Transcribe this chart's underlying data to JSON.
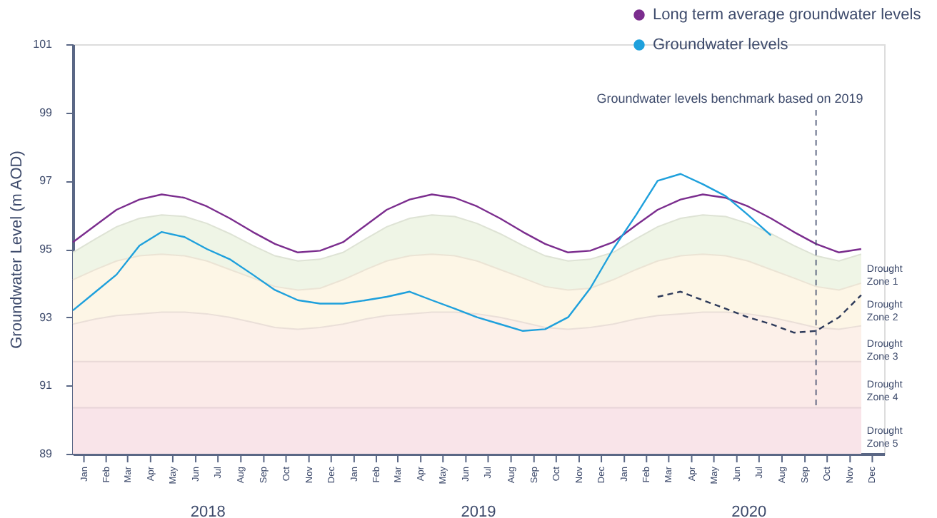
{
  "chart_data": {
    "type": "line",
    "ylabel": "Groundwater Level (m AOD)",
    "x": [
      "2018-01",
      "2018-02",
      "2018-03",
      "2018-04",
      "2018-05",
      "2018-06",
      "2018-07",
      "2018-08",
      "2018-09",
      "2018-10",
      "2018-11",
      "2018-12",
      "2019-01",
      "2019-02",
      "2019-03",
      "2019-04",
      "2019-05",
      "2019-06",
      "2019-07",
      "2019-08",
      "2019-09",
      "2019-10",
      "2019-11",
      "2019-12",
      "2020-01",
      "2020-02",
      "2020-03",
      "2020-04",
      "2020-05",
      "2020-06",
      "2020-07",
      "2020-08",
      "2020-09",
      "2020-10",
      "2020-11",
      "2020-12"
    ],
    "xlim": [
      "2018-01-01",
      "2021-01-01"
    ],
    "xticks": [
      {
        "value": "2018-01-16",
        "label": "Jan"
      },
      {
        "value": "2018-02-15",
        "label": "Feb"
      },
      {
        "value": "2018-03-16",
        "label": "Mar"
      },
      {
        "value": "2018-04-16",
        "label": "Apr"
      },
      {
        "value": "2018-05-16",
        "label": "May"
      },
      {
        "value": "2018-06-16",
        "label": "Jun"
      },
      {
        "value": "2018-07-16",
        "label": "Jul"
      },
      {
        "value": "2018-08-16",
        "label": "Aug"
      },
      {
        "value": "2018-09-16",
        "label": "Sep"
      },
      {
        "value": "2018-10-16",
        "label": "Oct"
      },
      {
        "value": "2018-11-16",
        "label": "Nov"
      },
      {
        "value": "2018-12-16",
        "label": "Dec"
      },
      {
        "value": "2019-01-16",
        "label": "Jan"
      },
      {
        "value": "2019-02-15",
        "label": "Feb"
      },
      {
        "value": "2019-03-16",
        "label": "Mar"
      },
      {
        "value": "2019-04-16",
        "label": "Apr"
      },
      {
        "value": "2019-05-16",
        "label": "May"
      },
      {
        "value": "2019-06-16",
        "label": "Jun"
      },
      {
        "value": "2019-07-16",
        "label": "Jul"
      },
      {
        "value": "2019-08-16",
        "label": "Aug"
      },
      {
        "value": "2019-09-16",
        "label": "Sep"
      },
      {
        "value": "2019-10-16",
        "label": "Oct"
      },
      {
        "value": "2019-11-16",
        "label": "Nov"
      },
      {
        "value": "2019-12-16",
        "label": "Dec"
      },
      {
        "value": "2020-01-16",
        "label": "Jan"
      },
      {
        "value": "2020-02-15",
        "label": "Feb"
      },
      {
        "value": "2020-03-16",
        "label": "Mar"
      },
      {
        "value": "2020-04-16",
        "label": "Apr"
      },
      {
        "value": "2020-05-16",
        "label": "May"
      },
      {
        "value": "2020-06-16",
        "label": "Jun"
      },
      {
        "value": "2020-07-16",
        "label": "Jul"
      },
      {
        "value": "2020-08-16",
        "label": "Aug"
      },
      {
        "value": "2020-09-16",
        "label": "Sep"
      },
      {
        "value": "2020-10-16",
        "label": "Oct"
      },
      {
        "value": "2020-11-16",
        "label": "Nov"
      },
      {
        "value": "2020-12-16",
        "label": "Dec"
      }
    ],
    "ylim": [
      89,
      101
    ],
    "yticks": [
      89,
      91,
      93,
      95,
      97,
      99,
      101
    ],
    "grid": false,
    "legend": "top right",
    "marker": "none",
    "series": [
      {
        "name": "Drought Zone 1",
        "type": "area",
        "color": "#eff5e6",
        "values": [
          94.9,
          95.3,
          95.65,
          95.9,
          96.0,
          95.95,
          95.75,
          95.45,
          95.1,
          94.8,
          94.65,
          94.7,
          94.9,
          95.3,
          95.65,
          95.9,
          96.0,
          95.95,
          95.75,
          95.45,
          95.1,
          94.8,
          94.65,
          94.7,
          94.9,
          95.3,
          95.65,
          95.9,
          96.0,
          95.95,
          95.75,
          95.45,
          95.1,
          94.8,
          94.65,
          94.85
        ]
      },
      {
        "name": "Drought Zone 2",
        "type": "area",
        "color": "#fdf6e6",
        "values": [
          94.1,
          94.4,
          94.65,
          94.8,
          94.85,
          94.8,
          94.65,
          94.4,
          94.15,
          93.9,
          93.8,
          93.85,
          94.1,
          94.4,
          94.65,
          94.8,
          94.85,
          94.8,
          94.65,
          94.4,
          94.15,
          93.9,
          93.8,
          93.85,
          94.1,
          94.4,
          94.65,
          94.8,
          94.85,
          94.8,
          94.65,
          94.4,
          94.15,
          93.9,
          93.8,
          94.0
        ]
      },
      {
        "name": "Drought Zone 3",
        "type": "area",
        "color": "#fcf0e9",
        "values": [
          92.8,
          92.95,
          93.05,
          93.1,
          93.15,
          93.15,
          93.1,
          93.0,
          92.85,
          92.7,
          92.65,
          92.7,
          92.8,
          92.95,
          93.05,
          93.1,
          93.15,
          93.15,
          93.1,
          93.0,
          92.85,
          92.7,
          92.65,
          92.7,
          92.8,
          92.95,
          93.05,
          93.1,
          93.15,
          93.15,
          93.1,
          93.0,
          92.85,
          92.7,
          92.65,
          92.75
        ]
      },
      {
        "name": "Drought Zone 4",
        "type": "area",
        "color": "#fbeae8",
        "values": [
          91.7,
          91.7,
          91.7,
          91.7,
          91.7,
          91.7,
          91.7,
          91.7,
          91.7,
          91.7,
          91.7,
          91.7,
          91.7,
          91.7,
          91.7,
          91.7,
          91.7,
          91.7,
          91.7,
          91.7,
          91.7,
          91.7,
          91.7,
          91.7,
          91.7,
          91.7,
          91.7,
          91.7,
          91.7,
          91.7,
          91.7,
          91.7,
          91.7,
          91.7,
          91.7,
          91.7
        ]
      },
      {
        "name": "Drought Zone 5",
        "type": "area",
        "color": "#f9e4e9",
        "values": [
          90.35,
          90.35,
          90.35,
          90.35,
          90.35,
          90.35,
          90.35,
          90.35,
          90.35,
          90.35,
          90.35,
          90.35,
          90.35,
          90.35,
          90.35,
          90.35,
          90.35,
          90.35,
          90.35,
          90.35,
          90.35,
          90.35,
          90.35,
          90.35,
          90.35,
          90.35,
          90.35,
          90.35,
          90.35,
          90.35,
          90.35,
          90.35,
          90.35,
          90.35,
          90.35,
          90.35
        ]
      },
      {
        "name": "Long term average groundwater levels",
        "color": "#7b2d8e",
        "values": [
          95.2,
          95.7,
          96.15,
          96.45,
          96.6,
          96.5,
          96.25,
          95.9,
          95.5,
          95.15,
          94.9,
          94.95,
          95.2,
          95.7,
          96.15,
          96.45,
          96.6,
          96.5,
          96.25,
          95.9,
          95.5,
          95.15,
          94.9,
          94.95,
          95.2,
          95.7,
          96.15,
          96.45,
          96.6,
          96.5,
          96.25,
          95.9,
          95.5,
          95.15,
          94.9,
          95.0
        ]
      },
      {
        "name": "Groundwater levels",
        "color": "#1ea0dc",
        "values": [
          93.2,
          93.75,
          94.25,
          95.1,
          95.5,
          95.35,
          95.0,
          94.7,
          94.25,
          93.8,
          93.5,
          93.4,
          93.4,
          93.5,
          93.6,
          93.75,
          93.5,
          93.25,
          93.0,
          92.8,
          92.6,
          92.65,
          93.0,
          93.85,
          95.0,
          96.0,
          97.0,
          97.2,
          96.9,
          96.55,
          96.0,
          95.4,
          null,
          null,
          null,
          null
        ]
      },
      {
        "color": "#2d3a5a",
        "line_style": "dashed",
        "x": [
          "2020-03",
          "2020-04",
          "2020-05",
          "2020-06",
          "2020-07",
          "2020-08",
          "2020-09",
          "2020-10",
          "2020-11",
          "2020-12"
        ],
        "values": [
          93.6,
          93.75,
          93.5,
          93.25,
          93.0,
          92.8,
          92.55,
          92.6,
          93.0,
          93.65
        ]
      }
    ],
    "ref_lines": [
      {
        "axis": "x",
        "value": "2020-10-01",
        "label": "Groundwater levels benchmark based on 2019",
        "line_style": "dashed",
        "color": "#3d4a6b"
      }
    ],
    "annotations": [
      "2018",
      "2019",
      "2020"
    ]
  }
}
